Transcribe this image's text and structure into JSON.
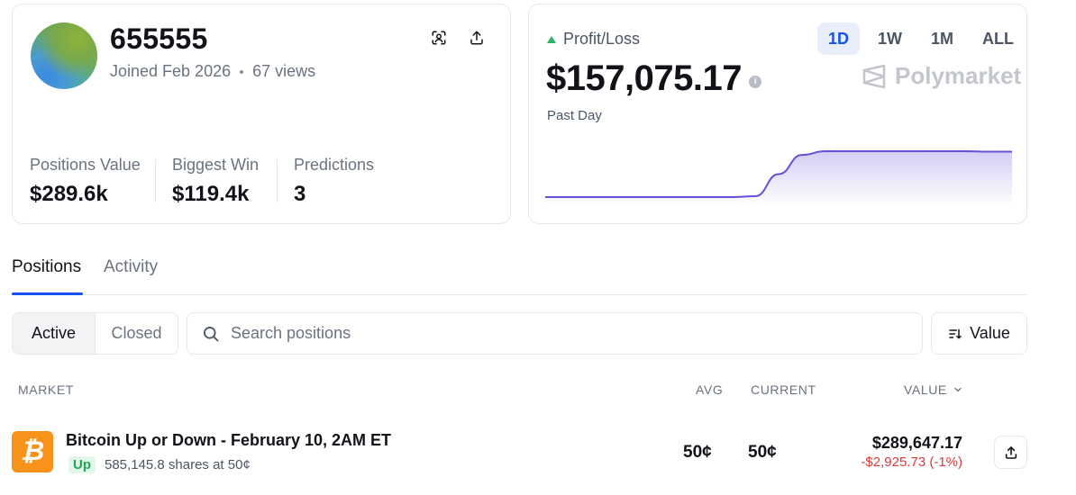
{
  "profile": {
    "username": "655555",
    "joined": "Joined Feb 2026",
    "views": "67 views",
    "stats": [
      {
        "label": "Positions Value",
        "value": "$289.6k"
      },
      {
        "label": "Biggest Win",
        "value": "$119.4k"
      },
      {
        "label": "Predictions",
        "value": "3"
      }
    ]
  },
  "pnl": {
    "label": "Profit/Loss",
    "value": "$157,075.17",
    "period_label": "Past Day",
    "timeframes": [
      "1D",
      "1W",
      "1M",
      "ALL"
    ],
    "active_timeframe": "1D",
    "brand": "Polymarket",
    "colors": {
      "up": "#2fb36b",
      "line": "#6a4fd8",
      "accent": "#1652f0"
    }
  },
  "chart_data": {
    "type": "area",
    "x": [
      0,
      1,
      2,
      3,
      4,
      5,
      6,
      7,
      8,
      9,
      10,
      11,
      12,
      13,
      14,
      15,
      16,
      17,
      18,
      19,
      20
    ],
    "values": [
      0,
      0,
      0,
      0,
      0,
      0,
      0,
      0,
      0,
      0.02,
      0.5,
      0.92,
      1,
      1,
      1,
      1,
      1,
      1,
      1,
      0.99,
      0.99
    ],
    "xlabel": "",
    "ylabel": "",
    "grid": false
  },
  "tabs": {
    "positions": "Positions",
    "activity": "Activity",
    "active": "positions"
  },
  "filters": {
    "active": "Active",
    "closed": "Closed",
    "search_placeholder": "Search positions",
    "sort_label": "Value"
  },
  "table": {
    "headers": {
      "market": "MARKET",
      "avg": "AVG",
      "current": "CURRENT",
      "value": "VALUE"
    },
    "rows": [
      {
        "title": "Bitcoin Up or Down - February 10, 2AM ET",
        "outcome": "Up",
        "shares": "585,145.8 shares at 50¢",
        "avg": "50¢",
        "current": "50¢",
        "value": "$289,647.17",
        "pnl": "-$2,925.73 (-1%)",
        "icon": "bitcoin-icon",
        "icon_glyph": "₿"
      }
    ]
  }
}
